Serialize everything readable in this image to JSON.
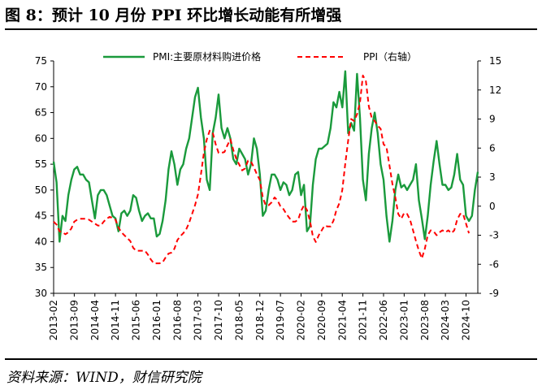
{
  "figure": {
    "title": "图 8：预计 10 月份 PPI 环比增长动能有所增强",
    "source": "资料来源：WIND，财信研究院"
  },
  "colors": {
    "pmi": "#1a9a3c",
    "ppi": "#ff0000",
    "axis": "#000000"
  },
  "chart_data": {
    "type": "line",
    "legend_placement": "top",
    "grid": false,
    "left_axis": {
      "range": [
        30,
        75
      ],
      "ticks": [
        30,
        35,
        40,
        45,
        50,
        55,
        60,
        65,
        70,
        75
      ]
    },
    "right_axis": {
      "range": [
        -9,
        15
      ],
      "ticks": [
        -9,
        -6,
        -3,
        0,
        3,
        6,
        9,
        12,
        15
      ]
    },
    "x_tick_labels": [
      "2013-02",
      "2013-09",
      "2014-04",
      "2014-11",
      "2015-06",
      "2016-01",
      "2016-08",
      "2017-03",
      "2017-10",
      "2018-05",
      "2018-12",
      "2019-07",
      "2020-02",
      "2020-09",
      "2021-04",
      "2021-11",
      "2022-06",
      "2023-01",
      "2023-08",
      "2024-03",
      "2024-10"
    ],
    "x_start": "2013-02",
    "series": [
      {
        "name": "PMI:主要原材料购进价格",
        "axis": "left",
        "style": "solid",
        "color": "#1a9a3c",
        "values": [
          55.5,
          51.5,
          40.0,
          45.0,
          44.0,
          49.0,
          52.0,
          54.0,
          54.5,
          53.0,
          53.0,
          52.0,
          51.5,
          48.0,
          44.5,
          49.0,
          50.0,
          50.0,
          49.0,
          47.0,
          45.0,
          44.5,
          42.0,
          45.5,
          46.0,
          45.0,
          46.0,
          49.0,
          48.5,
          46.0,
          44.0,
          45.0,
          45.5,
          44.5,
          44.5,
          41.0,
          41.5,
          44.0,
          48.0,
          54.0,
          57.5,
          55.0,
          51.0,
          54.0,
          55.0,
          58.0,
          60.0,
          64.0,
          68.0,
          69.8,
          64.0,
          60.0,
          52.0,
          50.0,
          61.0,
          64.0,
          68.5,
          62.0,
          60.0,
          62.0,
          60.0,
          56.0,
          55.0,
          58.0,
          57.0,
          56.0,
          53.0,
          55.0,
          60.0,
          58.0,
          53.0,
          45.0,
          46.0,
          50.0,
          53.0,
          53.0,
          52.0,
          50.0,
          51.5,
          51.0,
          49.0,
          50.0,
          53.0,
          53.5,
          49.0,
          51.0,
          42.0,
          43.0,
          51.0,
          56.0,
          58.0,
          58.0,
          58.5,
          59.0,
          62.0,
          67.0,
          66.0,
          69.0,
          66.0,
          73.0,
          61.0,
          63.0,
          61.5,
          72.5,
          64.0,
          52.0,
          48.0,
          57.0,
          62.0,
          65.0,
          61.0,
          55.0,
          52.0,
          45.0,
          40.0,
          44.0,
          50.0,
          53.0,
          50.5,
          51.0,
          50.0,
          51.0,
          52.0,
          55.0,
          48.0,
          44.5,
          40.5,
          45.0,
          51.0,
          55.5,
          59.5,
          55.0,
          51.0,
          51.0,
          50.0,
          50.5,
          53.0,
          57.0,
          52.0,
          51.0,
          45.0,
          44.0,
          45.0,
          50.0,
          53.5
        ]
      },
      {
        "name": "PPI（右轴）",
        "axis": "right",
        "style": "dashed",
        "color": "#ff0000",
        "values": [
          -1.6,
          -1.9,
          -2.6,
          -2.7,
          -2.9,
          -2.7,
          -2.3,
          -1.6,
          -1.4,
          -1.3,
          -1.3,
          -1.3,
          -1.4,
          -1.6,
          -1.8,
          -2.0,
          -2.0,
          -1.6,
          -1.3,
          -1.1,
          -1.2,
          -1.4,
          -2.2,
          -2.7,
          -3.0,
          -3.3,
          -3.6,
          -4.3,
          -4.6,
          -4.6,
          -4.6,
          -4.6,
          -5.0,
          -5.5,
          -5.9,
          -5.9,
          -5.9,
          -5.8,
          -5.3,
          -4.9,
          -4.8,
          -4.4,
          -3.5,
          -3.1,
          -2.8,
          -2.4,
          -1.7,
          -0.8,
          0.1,
          1.2,
          3.3,
          5.5,
          6.9,
          7.8,
          7.6,
          6.4,
          5.5,
          5.5,
          5.6,
          6.3,
          6.9,
          5.8,
          4.9,
          4.3,
          3.7,
          3.9,
          4.7,
          4.6,
          4.0,
          3.3,
          2.7,
          0.9,
          0.1,
          0.1,
          0.4,
          0.9,
          0.6,
          0.0,
          -0.3,
          -0.8,
          -1.2,
          -1.6,
          -1.6,
          -1.4,
          -0.5,
          0.1,
          -0.4,
          -1.5,
          -3.1,
          -3.7,
          -3.0,
          -2.5,
          -2.0,
          -2.1,
          -2.1,
          -1.5,
          -0.4,
          0.3,
          1.7,
          4.4,
          6.8,
          9.0,
          8.8,
          9.5,
          10.7,
          13.5,
          12.9,
          10.3,
          9.1,
          8.8,
          8.3,
          8.0,
          6.4,
          6.1,
          4.2,
          2.3,
          0.9,
          -0.8,
          -1.3,
          -0.7,
          -0.8,
          -1.4,
          -2.5,
          -3.6,
          -4.6,
          -5.4,
          -4.4,
          -3.0,
          -2.5,
          -2.6,
          -3.0,
          -2.7,
          -2.5,
          -2.7,
          -2.5,
          -2.8,
          -2.5,
          -1.4,
          -0.8,
          -0.8,
          -1.8,
          -2.8
        ]
      }
    ]
  }
}
